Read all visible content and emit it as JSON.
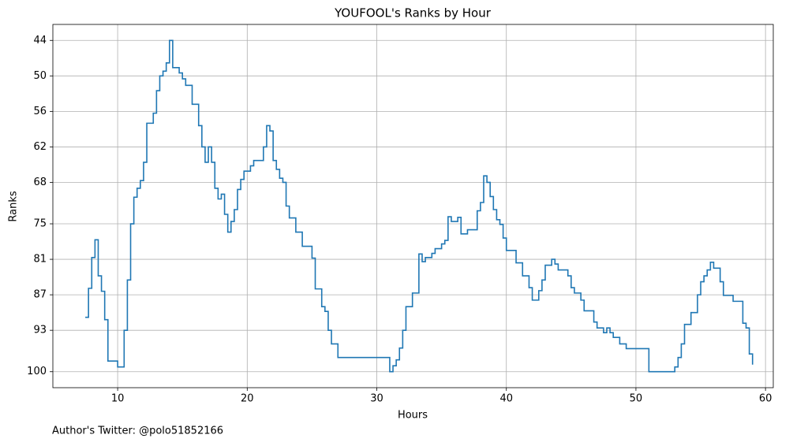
{
  "chart_data": {
    "type": "step",
    "title": "YOUFOOL's Ranks by Hour",
    "x_label": "Hours",
    "y_label": "Ranks",
    "footnote": "Author's Twitter: @polo51852166",
    "series": [
      {
        "name": "Ranks",
        "color": "#1f77b4",
        "x": [
          7.5,
          7.75,
          8.0,
          8.25,
          8.5,
          8.75,
          9.0,
          9.25,
          10.0,
          10.5,
          10.75,
          11.0,
          11.25,
          11.5,
          11.75,
          12.0,
          12.25,
          12.75,
          13.0,
          13.25,
          13.5,
          13.75,
          14.0,
          14.25,
          14.75,
          15.0,
          15.25,
          15.75,
          16.25,
          16.5,
          16.75,
          17.0,
          17.25,
          17.5,
          17.75,
          18.0,
          18.25,
          18.5,
          18.75,
          19.0,
          19.25,
          19.5,
          19.75,
          20.25,
          20.5,
          21.25,
          21.5,
          21.75,
          22.0,
          22.25,
          22.5,
          22.75,
          23.0,
          23.25,
          23.75,
          24.25,
          25.0,
          25.25,
          25.75,
          26.0,
          26.25,
          26.5,
          27.0,
          31.0,
          31.25,
          31.5,
          31.75,
          32.0,
          32.25,
          32.75,
          33.25,
          33.5,
          33.75,
          34.25,
          34.5,
          35.0,
          35.25,
          35.5,
          35.75,
          36.25,
          36.5,
          37.0,
          37.75,
          38.0,
          38.25,
          38.5,
          38.75,
          39.0,
          39.25,
          39.5,
          39.75,
          40.0,
          40.75,
          41.25,
          41.75,
          42.0,
          42.5,
          42.75,
          43.0,
          43.5,
          43.75,
          44.0,
          44.75,
          45.0,
          45.25,
          45.75,
          46.0,
          46.75,
          47.0,
          47.5,
          47.75,
          48.0,
          48.25,
          48.75,
          49.25,
          51.0,
          53.0,
          53.25,
          53.5,
          53.75,
          54.25,
          54.75,
          55.0,
          55.25,
          55.5,
          55.75,
          56.0,
          56.5,
          56.75,
          57.5,
          58.0,
          58.25,
          58.5,
          58.75,
          59.0
        ],
        "values": [
          90.8,
          85.9,
          80.7,
          77.7,
          83.8,
          86.4,
          91.2,
          98.2,
          99.2,
          93.0,
          84.5,
          75.0,
          70.5,
          69.0,
          67.7,
          64.6,
          58.0,
          56.3,
          52.5,
          50.0,
          49.2,
          47.8,
          44.0,
          48.6,
          49.5,
          50.5,
          51.6,
          54.8,
          58.4,
          62.0,
          64.6,
          62.0,
          64.6,
          69.0,
          70.8,
          70.0,
          73.4,
          76.4,
          74.6,
          72.6,
          69.2,
          67.5,
          66.1,
          65.2,
          64.3,
          62.0,
          58.4,
          59.3,
          64.3,
          65.8,
          67.3,
          68.0,
          72.0,
          74.0,
          76.4,
          78.8,
          80.8,
          86.0,
          89.0,
          89.8,
          93.0,
          95.3,
          97.6,
          100,
          99.0,
          98.0,
          96.0,
          93.0,
          89.0,
          86.7,
          80.1,
          81.4,
          80.7,
          80.0,
          79.2,
          78.4,
          77.8,
          73.8,
          74.6,
          73.9,
          76.7,
          76.0,
          72.8,
          71.4,
          66.9,
          68.0,
          70.4,
          72.6,
          74.3,
          75.1,
          77.4,
          79.5,
          81.6,
          83.8,
          85.8,
          87.9,
          86.3,
          84.5,
          82.0,
          81.0,
          81.8,
          82.8,
          83.8,
          85.8,
          86.7,
          87.9,
          89.7,
          91.6,
          92.6,
          93.4,
          92.6,
          93.4,
          94.2,
          95.3,
          96.1,
          100,
          99.2,
          97.6,
          95.3,
          92.0,
          90.0,
          87.0,
          84.8,
          83.8,
          82.8,
          81.5,
          82.5,
          84.8,
          87.1,
          88.1,
          88.1,
          91.8,
          92.6,
          97.0,
          98.8
        ]
      }
    ],
    "xlim": [
      5.0,
      60.6
    ],
    "xticks": [
      10,
      20,
      30,
      40,
      50,
      60
    ],
    "ylim": [
      102.7,
      41.3
    ],
    "yticks": [
      44,
      50,
      56,
      62,
      68,
      75,
      81,
      87,
      93,
      100
    ],
    "grid": true
  }
}
